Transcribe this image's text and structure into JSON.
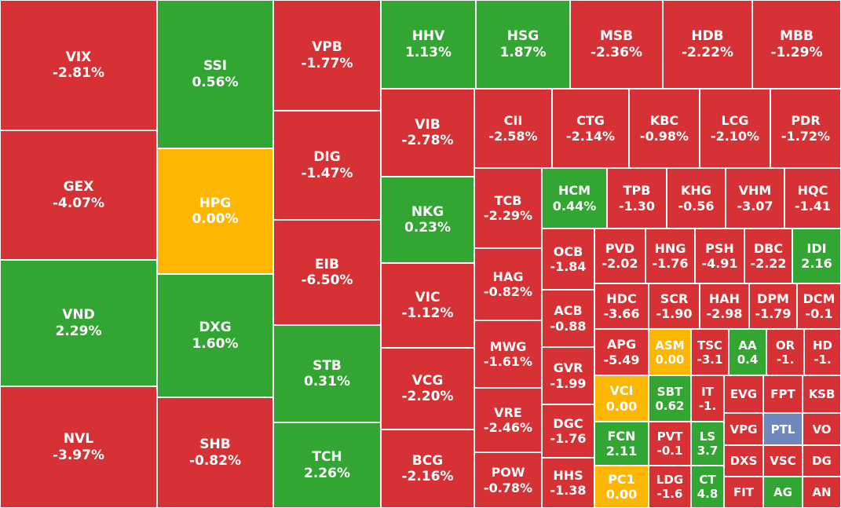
{
  "colors": {
    "down": "#d63134",
    "up": "#33a532",
    "flat": "#fdb702",
    "other": "#6e88bd"
  },
  "chart_data": {
    "type": "treemap",
    "tiles": [
      {
        "ticker": "VIX",
        "change": "-2.81%",
        "status": "down"
      },
      {
        "ticker": "GEX",
        "change": "-4.07%",
        "status": "down"
      },
      {
        "ticker": "VND",
        "change": "2.29%",
        "status": "up"
      },
      {
        "ticker": "NVL",
        "change": "-3.97%",
        "status": "down"
      },
      {
        "ticker": "SSI",
        "change": "0.56%",
        "status": "up"
      },
      {
        "ticker": "HPG",
        "change": "0.00%",
        "status": "flat"
      },
      {
        "ticker": "DXG",
        "change": "1.60%",
        "status": "up"
      },
      {
        "ticker": "SHB",
        "change": "-0.82%",
        "status": "down"
      },
      {
        "ticker": "VPB",
        "change": "-1.77%",
        "status": "down"
      },
      {
        "ticker": "DIG",
        "change": "-1.47%",
        "status": "down"
      },
      {
        "ticker": "EIB",
        "change": "-6.50%",
        "status": "down"
      },
      {
        "ticker": "STB",
        "change": "0.31%",
        "status": "up"
      },
      {
        "ticker": "TCH",
        "change": "2.26%",
        "status": "up"
      },
      {
        "ticker": "HHV",
        "change": "1.13%",
        "status": "up"
      },
      {
        "ticker": "HSG",
        "change": "1.87%",
        "status": "up"
      },
      {
        "ticker": "MSB",
        "change": "-2.36%",
        "status": "down"
      },
      {
        "ticker": "HDB",
        "change": "-2.22%",
        "status": "down"
      },
      {
        "ticker": "MBB",
        "change": "-1.29%",
        "status": "down"
      },
      {
        "ticker": "VIB",
        "change": "-2.78%",
        "status": "down"
      },
      {
        "ticker": "NKG",
        "change": "0.23%",
        "status": "up"
      },
      {
        "ticker": "VIC",
        "change": "-1.12%",
        "status": "down"
      },
      {
        "ticker": "VCG",
        "change": "-2.20%",
        "status": "down"
      },
      {
        "ticker": "BCG",
        "change": "-2.16%",
        "status": "down"
      },
      {
        "ticker": "CII",
        "change": "-2.58%",
        "status": "down"
      },
      {
        "ticker": "CTG",
        "change": "-2.14%",
        "status": "down"
      },
      {
        "ticker": "KBC",
        "change": "-0.98%",
        "status": "down"
      },
      {
        "ticker": "LCG",
        "change": "-2.10%",
        "status": "down"
      },
      {
        "ticker": "PDR",
        "change": "-1.72%",
        "status": "down"
      },
      {
        "ticker": "TCB",
        "change": "-2.29%",
        "status": "down"
      },
      {
        "ticker": "HAG",
        "change": "-0.82%",
        "status": "down"
      },
      {
        "ticker": "MWG",
        "change": "-1.61%",
        "status": "down"
      },
      {
        "ticker": "VRE",
        "change": "-2.46%",
        "status": "down"
      },
      {
        "ticker": "POW",
        "change": "-0.78%",
        "status": "down"
      },
      {
        "ticker": "HCM",
        "change": "0.44%",
        "status": "up"
      },
      {
        "ticker": "TPB",
        "change": "-1.30",
        "status": "down"
      },
      {
        "ticker": "KHG",
        "change": "-0.56",
        "status": "down"
      },
      {
        "ticker": "VHM",
        "change": "-3.07",
        "status": "down"
      },
      {
        "ticker": "HQC",
        "change": "-1.41",
        "status": "down"
      },
      {
        "ticker": "OCB",
        "change": "-1.84",
        "status": "down"
      },
      {
        "ticker": "ACB",
        "change": "-0.88",
        "status": "down"
      },
      {
        "ticker": "GVR",
        "change": "-1.99",
        "status": "down"
      },
      {
        "ticker": "DGC",
        "change": "-1.76",
        "status": "down"
      },
      {
        "ticker": "HHS",
        "change": "-1.38",
        "status": "down"
      },
      {
        "ticker": "PVD",
        "change": "-2.02",
        "status": "down"
      },
      {
        "ticker": "HNG",
        "change": "-1.76",
        "status": "down"
      },
      {
        "ticker": "PSH",
        "change": "-4.91",
        "status": "down"
      },
      {
        "ticker": "DBC",
        "change": "-2.22",
        "status": "down"
      },
      {
        "ticker": "IDI",
        "change": "2.16",
        "status": "up"
      },
      {
        "ticker": "HDC",
        "change": "-3.66",
        "status": "down"
      },
      {
        "ticker": "SCR",
        "change": "-1.90",
        "status": "down"
      },
      {
        "ticker": "HAH",
        "change": "-2.98",
        "status": "down"
      },
      {
        "ticker": "DPM",
        "change": "-1.79",
        "status": "down"
      },
      {
        "ticker": "DCM",
        "change": "-0.1",
        "status": "down"
      },
      {
        "ticker": "APG",
        "change": "-5.49",
        "status": "down"
      },
      {
        "ticker": "ASM",
        "change": "0.00",
        "status": "flat"
      },
      {
        "ticker": "TSC",
        "change": "-3.1",
        "status": "down"
      },
      {
        "ticker": "AA",
        "change": "0.4",
        "status": "up"
      },
      {
        "ticker": "OR",
        "change": "-1.",
        "status": "down"
      },
      {
        "ticker": "HD",
        "change": "-1.",
        "status": "down"
      },
      {
        "ticker": "VCI",
        "change": "0.00",
        "status": "flat"
      },
      {
        "ticker": "SBT",
        "change": "0.62",
        "status": "up"
      },
      {
        "ticker": "IT",
        "change": "-1.",
        "status": "down"
      },
      {
        "ticker": "EVG",
        "change": "",
        "status": "down"
      },
      {
        "ticker": "FPT",
        "change": "",
        "status": "down"
      },
      {
        "ticker": "KSB",
        "change": "",
        "status": "down"
      },
      {
        "ticker": "FCN",
        "change": "2.11",
        "status": "up"
      },
      {
        "ticker": "PVT",
        "change": "-0.1",
        "status": "down"
      },
      {
        "ticker": "LS",
        "change": "3.7",
        "status": "up"
      },
      {
        "ticker": "VPG",
        "change": "",
        "status": "down"
      },
      {
        "ticker": "PTL",
        "change": "",
        "status": "other"
      },
      {
        "ticker": "VO",
        "change": "",
        "status": "down"
      },
      {
        "ticker": "DXS",
        "change": "",
        "status": "down"
      },
      {
        "ticker": "VSC",
        "change": "",
        "status": "down"
      },
      {
        "ticker": "DG",
        "change": "",
        "status": "down"
      },
      {
        "ticker": "PC1",
        "change": "0.00",
        "status": "flat"
      },
      {
        "ticker": "LDG",
        "change": "-1.6",
        "status": "down"
      },
      {
        "ticker": "CT",
        "change": "4.8",
        "status": "up"
      },
      {
        "ticker": "FIT",
        "change": "",
        "status": "down"
      },
      {
        "ticker": "AG",
        "change": "",
        "status": "up"
      },
      {
        "ticker": "AN",
        "change": "",
        "status": "down"
      }
    ]
  }
}
